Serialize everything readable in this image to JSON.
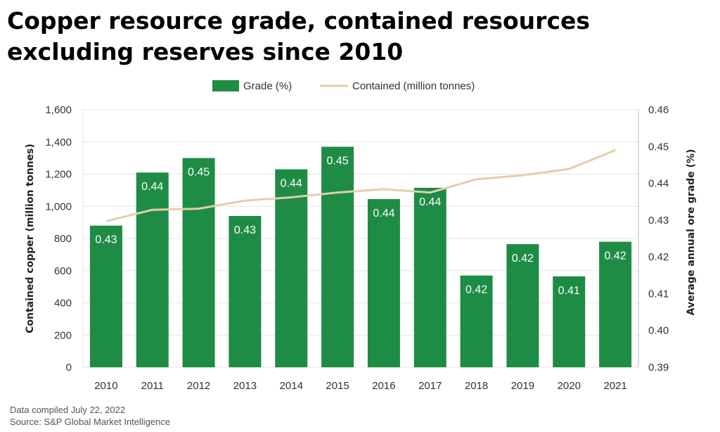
{
  "chart_data": {
    "type": "bar",
    "title": "Copper resource grade, contained resources excluding reserves since 2010",
    "categories": [
      "2010",
      "2011",
      "2012",
      "2013",
      "2014",
      "2015",
      "2016",
      "2017",
      "2018",
      "2019",
      "2020",
      "2021"
    ],
    "series": [
      {
        "name": "Grade (%)",
        "type": "bar",
        "axis": "left",
        "color": "#1e8c45",
        "values": [
          880,
          1210,
          1300,
          940,
          1230,
          1370,
          1045,
          1115,
          570,
          765,
          565,
          780
        ],
        "labels": [
          "0.43",
          "0.44",
          "0.45",
          "0.43",
          "0.44",
          "0.45",
          "0.44",
          "0.44",
          "0.42",
          "0.42",
          "0.41",
          "0.42"
        ]
      },
      {
        "name": "Contained (million tonnes)",
        "type": "line",
        "axis": "right",
        "color": "#e3cfa8",
        "values": [
          0.4297,
          0.4328,
          0.4331,
          0.4353,
          0.4362,
          0.4375,
          0.4384,
          0.4375,
          0.4411,
          0.4422,
          0.4439,
          0.449
        ]
      }
    ],
    "ylabel": "Contained copper (million tonnes)",
    "y2label": "Average annual ore grade (%)",
    "ylim": [
      0,
      1600
    ],
    "y2lim": [
      0.39,
      0.46
    ],
    "yticks": [
      "0",
      "200",
      "400",
      "600",
      "800",
      "1,000",
      "1,200",
      "1,400",
      "1,600"
    ],
    "y2ticks": [
      "0.39",
      "0.40",
      "0.41",
      "0.42",
      "0.43",
      "0.44",
      "0.45",
      "0.46"
    ],
    "legend_position": "top-center",
    "grid": true
  },
  "footer": {
    "compiled": "Data compiled July 22, 2022",
    "source": "Source: S&P Global Market Intelligence"
  }
}
